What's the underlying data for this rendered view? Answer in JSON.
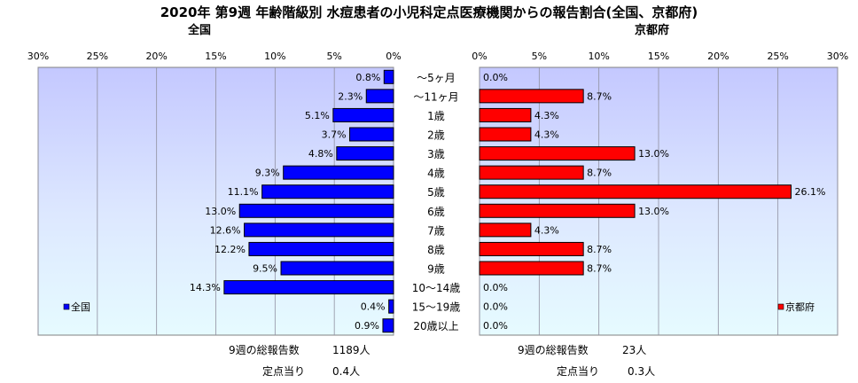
{
  "title": "2020年 第9週 年齢階級別 水痘患者の小児科定点医療機関からの報告割合(全国、京都府)",
  "left_panel": {
    "title": "全国",
    "legend": "全国",
    "color": "#0000ff",
    "total_label": "9週の総報告数",
    "total_value": "1189人",
    "per_site_label": "定点当り",
    "per_site_value": "0.4人"
  },
  "right_panel": {
    "title": "京都府",
    "legend": "京都府",
    "color": "#ff0000",
    "total_label": "9週の総報告数",
    "total_value": "23人",
    "per_site_label": "定点当り",
    "per_site_value": "0.3人"
  },
  "chart_data": [
    {
      "type": "bar",
      "orientation": "horizontal-reversed",
      "title": "全国",
      "categories": [
        "～5ヶ月",
        "～11ヶ月",
        "1歳",
        "2歳",
        "3歳",
        "4歳",
        "5歳",
        "6歳",
        "7歳",
        "8歳",
        "9歳",
        "10～14歳",
        "15～19歳",
        "20歳以上"
      ],
      "series": [
        {
          "name": "全国",
          "values": [
            0.8,
            2.3,
            5.1,
            3.7,
            4.8,
            9.3,
            11.1,
            13.0,
            12.6,
            12.2,
            9.5,
            14.3,
            0.4,
            0.9
          ]
        }
      ],
      "data_labels": [
        "0.8%",
        "2.3%",
        "5.1%",
        "3.7%",
        "4.8%",
        "9.3%",
        "11.1%",
        "13.0%",
        "12.6%",
        "12.2%",
        "9.5%",
        "14.3%",
        "0.4%",
        "0.9%"
      ],
      "xlim": [
        0,
        30
      ],
      "ticks": [
        "0%",
        "5%",
        "10%",
        "15%",
        "20%",
        "25%",
        "30%"
      ],
      "grid": true,
      "legend_position": "bottom-left"
    },
    {
      "type": "bar",
      "orientation": "horizontal",
      "title": "京都府",
      "categories": [
        "～5ヶ月",
        "～11ヶ月",
        "1歳",
        "2歳",
        "3歳",
        "4歳",
        "5歳",
        "6歳",
        "7歳",
        "8歳",
        "9歳",
        "10～14歳",
        "15～19歳",
        "20歳以上"
      ],
      "series": [
        {
          "name": "京都府",
          "values": [
            0.0,
            8.7,
            4.3,
            4.3,
            13.0,
            8.7,
            26.1,
            13.0,
            4.3,
            8.7,
            8.7,
            0.0,
            0.0,
            0.0
          ]
        }
      ],
      "data_labels": [
        "0.0%",
        "8.7%",
        "4.3%",
        "4.3%",
        "13.0%",
        "8.7%",
        "26.1%",
        "13.0%",
        "4.3%",
        "8.7%",
        "8.7%",
        "0.0%",
        "0.0%",
        "0.0%"
      ],
      "xlim": [
        0,
        30
      ],
      "ticks": [
        "0%",
        "5%",
        "10%",
        "15%",
        "20%",
        "25%",
        "30%"
      ],
      "grid": true,
      "legend_position": "bottom-right"
    }
  ]
}
